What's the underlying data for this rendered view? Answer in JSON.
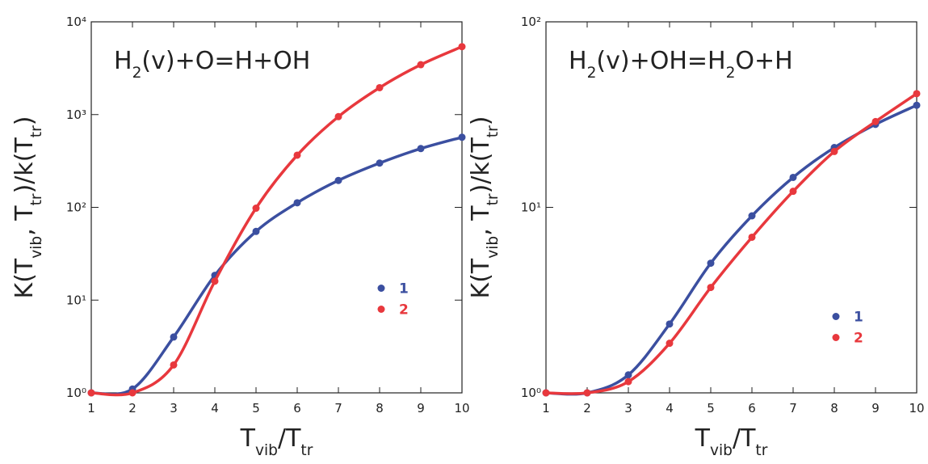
{
  "chart_data": [
    {
      "type": "line",
      "title": [
        "H",
        "2",
        "(v)+O=H+OH"
      ],
      "x_label": [
        "T",
        "vib",
        "/T",
        "tr"
      ],
      "y_label": [
        "K(T",
        "vib",
        ", T",
        "tr",
        ")/k(T",
        "tr",
        ")"
      ],
      "x": [
        1,
        2,
        3,
        4,
        5,
        6,
        7,
        8,
        9,
        10
      ],
      "xlim": [
        1,
        10
      ],
      "xticks": [
        1,
        2,
        3,
        4,
        5,
        6,
        7,
        8,
        9,
        10
      ],
      "ylim": [
        1,
        10000
      ],
      "log_y": true,
      "yticks": [
        {
          "value": 1,
          "label": "10⁰"
        },
        {
          "value": 10,
          "label": "10¹"
        },
        {
          "value": 100,
          "label": "10²"
        },
        {
          "value": 1000,
          "label": "10³"
        },
        {
          "value": 10000,
          "label": "10⁴"
        }
      ],
      "legend": "right",
      "series": [
        {
          "name": "1",
          "color": "#3b4fa0",
          "values": [
            1,
            1.1,
            4,
            18.5,
            55,
            112,
            195,
            300,
            430,
            570
          ]
        },
        {
          "name": "2",
          "color": "#e8383d",
          "values": [
            1,
            1,
            2,
            16,
            98,
            365,
            950,
            1950,
            3450,
            5400
          ]
        }
      ]
    },
    {
      "type": "line",
      "title": [
        "H",
        "2",
        "(v)+OH=H",
        "2",
        "O+H"
      ],
      "x_label": [
        "T",
        "vib",
        "/T",
        "tr"
      ],
      "y_label": [
        "K(T",
        "vib",
        ", T",
        "tr",
        ")/k(T",
        "tr",
        ")"
      ],
      "x": [
        1,
        2,
        3,
        4,
        5,
        6,
        7,
        8,
        9,
        10
      ],
      "xlim": [
        1,
        10
      ],
      "xticks": [
        1,
        2,
        3,
        4,
        5,
        6,
        7,
        8,
        9,
        10
      ],
      "ylim": [
        1,
        100
      ],
      "log_y": true,
      "yticks": [
        {
          "value": 1,
          "label": "10⁰"
        },
        {
          "value": 10,
          "label": "10¹"
        },
        {
          "value": 100,
          "label": "10²"
        }
      ],
      "legend": "right",
      "series": [
        {
          "name": "1",
          "color": "#3b4fa0",
          "values": [
            1,
            1,
            1.25,
            2.35,
            5,
            9,
            14.5,
            21,
            28,
            35.5
          ]
        },
        {
          "name": "2",
          "color": "#e8383d",
          "values": [
            1,
            1,
            1.15,
            1.85,
            3.7,
            6.9,
            12.2,
            20,
            29,
            41
          ]
        }
      ]
    }
  ]
}
